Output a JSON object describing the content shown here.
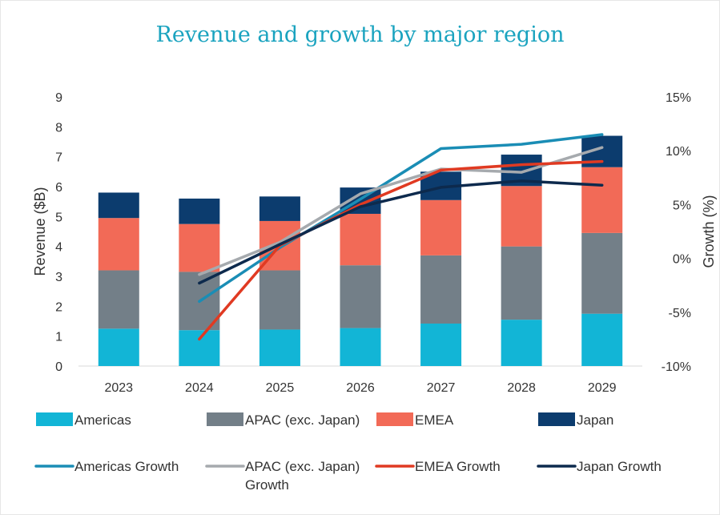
{
  "chart_data": {
    "type": "bar",
    "title": "Revenue and growth by major region",
    "xlabel": "",
    "ylabel": "Revenue ($B)",
    "y2label": "Growth (%)",
    "stacked": true,
    "categories": [
      "2023",
      "2024",
      "2025",
      "2026",
      "2027",
      "2028",
      "2029"
    ],
    "ylim": [
      0,
      9
    ],
    "yticks": [
      "0",
      "1",
      "2",
      "3",
      "4",
      "5",
      "6",
      "7",
      "8",
      "9"
    ],
    "y2lim": [
      -10,
      15
    ],
    "y2ticks": [
      "-10%",
      "-5%",
      "0%",
      "5%",
      "10%",
      "15%"
    ],
    "series": [
      {
        "name": "Americas",
        "type": "bar",
        "color": "#12b5d6",
        "values": [
          1.25,
          1.2,
          1.22,
          1.27,
          1.42,
          1.55,
          1.75
        ]
      },
      {
        "name": "APAC (exc. Japan)",
        "type": "bar",
        "color": "#737f88",
        "values": [
          1.95,
          1.95,
          1.98,
          2.1,
          2.28,
          2.45,
          2.7
        ]
      },
      {
        "name": "EMEA",
        "type": "bar",
        "color": "#f26a57",
        "values": [
          1.75,
          1.6,
          1.65,
          1.72,
          1.85,
          2.02,
          2.2
        ]
      },
      {
        "name": "Japan",
        "type": "bar",
        "color": "#0c3c6e",
        "values": [
          0.85,
          0.85,
          0.82,
          0.88,
          0.95,
          1.05,
          1.05
        ]
      }
    ],
    "line_series": [
      {
        "name": "Americas Growth",
        "type": "line",
        "color": "#1a8db5",
        "values": [
          null,
          -4,
          1,
          5.5,
          10.2,
          10.6,
          11.5
        ]
      },
      {
        "name": "APAC (exc. Japan) Growth",
        "type": "line",
        "color": "#a6aaae",
        "values": [
          null,
          -1.5,
          1.5,
          6,
          8.3,
          8,
          10.3
        ]
      },
      {
        "name": "EMEA Growth",
        "type": "line",
        "color": "#e03a22",
        "values": [
          null,
          -7.5,
          1.2,
          5,
          8.2,
          8.7,
          9
        ]
      },
      {
        "name": "Japan Growth",
        "type": "line",
        "color": "#0d2a4d",
        "values": [
          null,
          -2.3,
          1.3,
          4.8,
          6.6,
          7.2,
          6.8
        ]
      }
    ],
    "grid": false,
    "legend": "bottom"
  }
}
